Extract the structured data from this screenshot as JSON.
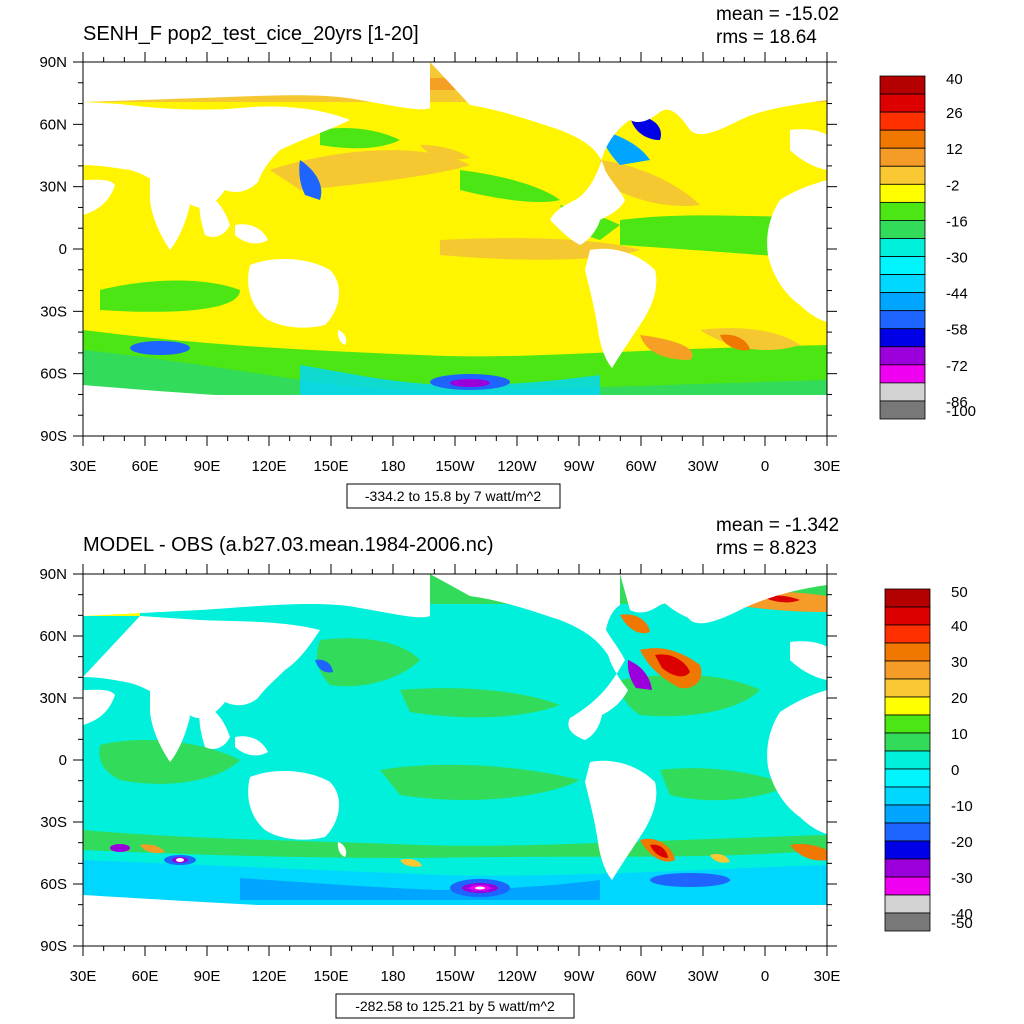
{
  "chart_data": [
    {
      "type": "heatmap",
      "title": "SENH_F pop2_test_cice_20yrs [1-20]",
      "stats": {
        "mean": "mean = -15.02",
        "rms": "rms = 18.64"
      },
      "range_note": "-334.2 to 15.8 by 7 watt/m^2",
      "x_ticks": [
        "30E",
        "60E",
        "90E",
        "120E",
        "150E",
        "180",
        "150W",
        "120W",
        "90W",
        "60W",
        "30W",
        "0",
        "30E"
      ],
      "y_ticks": [
        "90N",
        "60N",
        "30N",
        "0",
        "30S",
        "60S",
        "90S"
      ],
      "colorbar_labels": [
        "40",
        "26",
        "12",
        "-2",
        "-16",
        "-30",
        "-44",
        "-58",
        "-72",
        "-86",
        "-100"
      ],
      "colorbar_colors": [
        "#b40000",
        "#dc0000",
        "#ff3000",
        "#f07800",
        "#f59b28",
        "#fac832",
        "#ffff00",
        "#4be614",
        "#32dc5a",
        "#00f0dc",
        "#00f5ff",
        "#00d7ff",
        "#00a5ff",
        "#1e64ff",
        "#0000e6",
        "#9b00dc",
        "#f000f0",
        "#d2d2d2",
        "#787878"
      ]
    },
    {
      "type": "heatmap",
      "title": "MODEL - OBS (a.b27.03.mean.1984-2006.nc)",
      "stats": {
        "mean": "mean = -1.342",
        "rms": "rms = 8.823"
      },
      "range_note": "-282.58 to 125.21 by 5 watt/m^2",
      "x_ticks": [
        "30E",
        "60E",
        "90E",
        "120E",
        "150E",
        "180",
        "150W",
        "120W",
        "90W",
        "60W",
        "30W",
        "0",
        "30E"
      ],
      "y_ticks": [
        "90N",
        "60N",
        "30N",
        "0",
        "30S",
        "60S",
        "90S"
      ],
      "colorbar_labels": [
        "50",
        "40",
        "30",
        "20",
        "10",
        "0",
        "-10",
        "-20",
        "-30",
        "-40",
        "-50"
      ],
      "colorbar_colors": [
        "#b40000",
        "#dc0000",
        "#ff3000",
        "#f07800",
        "#f59b28",
        "#fac832",
        "#ffff00",
        "#4be614",
        "#32dc5a",
        "#00f0dc",
        "#00f5ff",
        "#00d7ff",
        "#00a5ff",
        "#1e64ff",
        "#0000e6",
        "#9b00dc",
        "#f000f0",
        "#d2d2d2",
        "#787878"
      ]
    }
  ]
}
